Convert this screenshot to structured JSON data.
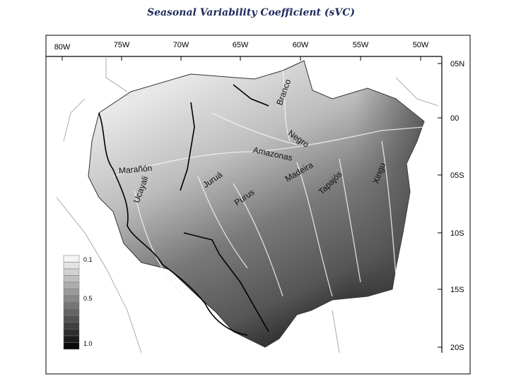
{
  "title": "Seasonal Variability Coefficient (sVC)",
  "longitude_labels": [
    "80W",
    "75W",
    "70W",
    "65W",
    "60W",
    "55W",
    "50W"
  ],
  "latitude_labels": [
    "05N",
    "00",
    "05S",
    "10S",
    "15S",
    "20S"
  ],
  "river_labels": [
    "Branco",
    "Negro",
    "Amazonas",
    "Marañón",
    "Ucayali",
    "Juruá",
    "Purus",
    "Madeira",
    "Tapajós",
    "Xingu"
  ],
  "legend_labels": [
    "0.1",
    "0.5",
    "1.0"
  ]
}
